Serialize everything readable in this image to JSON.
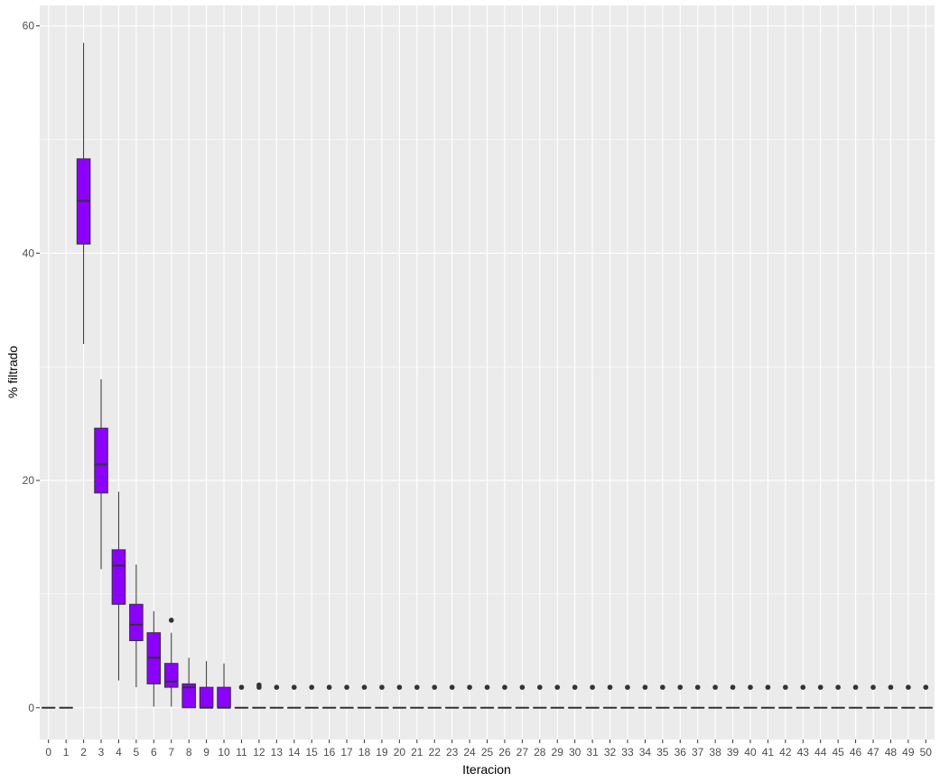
{
  "chart_data": {
    "type": "boxplot",
    "xlabel": "Iteracion",
    "ylabel": "% filtrado",
    "ylim": [
      -2.8,
      61.8
    ],
    "yticks": [
      0,
      20,
      40,
      60
    ],
    "grid": true,
    "fill_color": "#8B00FF",
    "panel_color": "#EBEBEB",
    "categories": [
      "0",
      "1",
      "2",
      "3",
      "4",
      "5",
      "6",
      "7",
      "8",
      "9",
      "10",
      "11",
      "12",
      "13",
      "14",
      "15",
      "16",
      "17",
      "18",
      "19",
      "20",
      "21",
      "22",
      "23",
      "24",
      "25",
      "26",
      "27",
      "28",
      "29",
      "30",
      "31",
      "32",
      "33",
      "34",
      "35",
      "36",
      "37",
      "38",
      "39",
      "40",
      "41",
      "42",
      "43",
      "44",
      "45",
      "46",
      "47",
      "48",
      "49",
      "50"
    ],
    "boxes": [
      {
        "x": "0",
        "min": 0,
        "q1": 0,
        "median": 0,
        "q3": 0,
        "max": 0,
        "outliers": []
      },
      {
        "x": "1",
        "min": 0,
        "q1": 0,
        "median": 0,
        "q3": 0,
        "max": 0,
        "outliers": []
      },
      {
        "x": "2",
        "min": 32.0,
        "q1": 40.8,
        "median": 44.6,
        "q3": 48.3,
        "max": 58.5,
        "outliers": []
      },
      {
        "x": "3",
        "min": 12.2,
        "q1": 18.9,
        "median": 21.4,
        "q3": 24.6,
        "max": 28.9,
        "outliers": []
      },
      {
        "x": "4",
        "min": 2.4,
        "q1": 9.1,
        "median": 12.5,
        "q3": 13.9,
        "max": 19.0,
        "outliers": []
      },
      {
        "x": "5",
        "min": 1.8,
        "q1": 5.9,
        "median": 7.3,
        "q3": 9.1,
        "max": 12.6,
        "outliers": []
      },
      {
        "x": "6",
        "min": 0.1,
        "q1": 2.1,
        "median": 4.4,
        "q3": 6.6,
        "max": 8.5,
        "outliers": []
      },
      {
        "x": "7",
        "min": 0.1,
        "q1": 1.8,
        "median": 2.3,
        "q3": 3.9,
        "max": 6.6,
        "outliers": [
          7.7
        ]
      },
      {
        "x": "8",
        "min": 0,
        "q1": 0,
        "median": 1.8,
        "q3": 2.1,
        "max": 4.4,
        "outliers": []
      },
      {
        "x": "9",
        "min": 0,
        "q1": 0,
        "median": 0,
        "q3": 1.8,
        "max": 4.1,
        "outliers": []
      },
      {
        "x": "10",
        "min": 0,
        "q1": 0,
        "median": 0,
        "q3": 1.8,
        "max": 3.9,
        "outliers": []
      },
      {
        "x": "11",
        "min": 0,
        "q1": 0,
        "median": 0,
        "q3": 0,
        "max": 0,
        "outliers": [
          1.8
        ]
      },
      {
        "x": "12",
        "min": 0,
        "q1": 0,
        "median": 0,
        "q3": 0,
        "max": 0,
        "outliers": [
          1.8,
          2.0
        ]
      },
      {
        "x": "13",
        "min": 0,
        "q1": 0,
        "median": 0,
        "q3": 0,
        "max": 0,
        "outliers": [
          1.8
        ]
      },
      {
        "x": "14",
        "min": 0,
        "q1": 0,
        "median": 0,
        "q3": 0,
        "max": 0,
        "outliers": [
          1.8
        ]
      },
      {
        "x": "15",
        "min": 0,
        "q1": 0,
        "median": 0,
        "q3": 0,
        "max": 0,
        "outliers": [
          1.8
        ]
      },
      {
        "x": "16",
        "min": 0,
        "q1": 0,
        "median": 0,
        "q3": 0,
        "max": 0,
        "outliers": [
          1.8
        ]
      },
      {
        "x": "17",
        "min": 0,
        "q1": 0,
        "median": 0,
        "q3": 0,
        "max": 0,
        "outliers": [
          1.8
        ]
      },
      {
        "x": "18",
        "min": 0,
        "q1": 0,
        "median": 0,
        "q3": 0,
        "max": 0,
        "outliers": [
          1.8
        ]
      },
      {
        "x": "19",
        "min": 0,
        "q1": 0,
        "median": 0,
        "q3": 0,
        "max": 0,
        "outliers": [
          1.8
        ]
      },
      {
        "x": "20",
        "min": 0,
        "q1": 0,
        "median": 0,
        "q3": 0,
        "max": 0,
        "outliers": [
          1.8
        ]
      },
      {
        "x": "21",
        "min": 0,
        "q1": 0,
        "median": 0,
        "q3": 0,
        "max": 0,
        "outliers": [
          1.8
        ]
      },
      {
        "x": "22",
        "min": 0,
        "q1": 0,
        "median": 0,
        "q3": 0,
        "max": 0,
        "outliers": [
          1.8
        ]
      },
      {
        "x": "23",
        "min": 0,
        "q1": 0,
        "median": 0,
        "q3": 0,
        "max": 0,
        "outliers": [
          1.8
        ]
      },
      {
        "x": "24",
        "min": 0,
        "q1": 0,
        "median": 0,
        "q3": 0,
        "max": 0,
        "outliers": [
          1.8
        ]
      },
      {
        "x": "25",
        "min": 0,
        "q1": 0,
        "median": 0,
        "q3": 0,
        "max": 0,
        "outliers": [
          1.8
        ]
      },
      {
        "x": "26",
        "min": 0,
        "q1": 0,
        "median": 0,
        "q3": 0,
        "max": 0,
        "outliers": [
          1.8
        ]
      },
      {
        "x": "27",
        "min": 0,
        "q1": 0,
        "median": 0,
        "q3": 0,
        "max": 0,
        "outliers": [
          1.8
        ]
      },
      {
        "x": "28",
        "min": 0,
        "q1": 0,
        "median": 0,
        "q3": 0,
        "max": 0,
        "outliers": [
          1.8
        ]
      },
      {
        "x": "29",
        "min": 0,
        "q1": 0,
        "median": 0,
        "q3": 0,
        "max": 0,
        "outliers": [
          1.8
        ]
      },
      {
        "x": "30",
        "min": 0,
        "q1": 0,
        "median": 0,
        "q3": 0,
        "max": 0,
        "outliers": [
          1.8
        ]
      },
      {
        "x": "31",
        "min": 0,
        "q1": 0,
        "median": 0,
        "q3": 0,
        "max": 0,
        "outliers": [
          1.8
        ]
      },
      {
        "x": "32",
        "min": 0,
        "q1": 0,
        "median": 0,
        "q3": 0,
        "max": 0,
        "outliers": [
          1.8
        ]
      },
      {
        "x": "33",
        "min": 0,
        "q1": 0,
        "median": 0,
        "q3": 0,
        "max": 0,
        "outliers": [
          1.8
        ]
      },
      {
        "x": "34",
        "min": 0,
        "q1": 0,
        "median": 0,
        "q3": 0,
        "max": 0,
        "outliers": [
          1.8
        ]
      },
      {
        "x": "35",
        "min": 0,
        "q1": 0,
        "median": 0,
        "q3": 0,
        "max": 0,
        "outliers": [
          1.8
        ]
      },
      {
        "x": "36",
        "min": 0,
        "q1": 0,
        "median": 0,
        "q3": 0,
        "max": 0,
        "outliers": [
          1.8
        ]
      },
      {
        "x": "37",
        "min": 0,
        "q1": 0,
        "median": 0,
        "q3": 0,
        "max": 0,
        "outliers": [
          1.8
        ]
      },
      {
        "x": "38",
        "min": 0,
        "q1": 0,
        "median": 0,
        "q3": 0,
        "max": 0,
        "outliers": [
          1.8
        ]
      },
      {
        "x": "39",
        "min": 0,
        "q1": 0,
        "median": 0,
        "q3": 0,
        "max": 0,
        "outliers": [
          1.8
        ]
      },
      {
        "x": "40",
        "min": 0,
        "q1": 0,
        "median": 0,
        "q3": 0,
        "max": 0,
        "outliers": [
          1.8
        ]
      },
      {
        "x": "41",
        "min": 0,
        "q1": 0,
        "median": 0,
        "q3": 0,
        "max": 0,
        "outliers": [
          1.8
        ]
      },
      {
        "x": "42",
        "min": 0,
        "q1": 0,
        "median": 0,
        "q3": 0,
        "max": 0,
        "outliers": [
          1.8
        ]
      },
      {
        "x": "43",
        "min": 0,
        "q1": 0,
        "median": 0,
        "q3": 0,
        "max": 0,
        "outliers": [
          1.8
        ]
      },
      {
        "x": "44",
        "min": 0,
        "q1": 0,
        "median": 0,
        "q3": 0,
        "max": 0,
        "outliers": [
          1.8
        ]
      },
      {
        "x": "45",
        "min": 0,
        "q1": 0,
        "median": 0,
        "q3": 0,
        "max": 0,
        "outliers": [
          1.8
        ]
      },
      {
        "x": "46",
        "min": 0,
        "q1": 0,
        "median": 0,
        "q3": 0,
        "max": 0,
        "outliers": [
          1.8
        ]
      },
      {
        "x": "47",
        "min": 0,
        "q1": 0,
        "median": 0,
        "q3": 0,
        "max": 0,
        "outliers": [
          1.8
        ]
      },
      {
        "x": "48",
        "min": 0,
        "q1": 0,
        "median": 0,
        "q3": 0,
        "max": 0,
        "outliers": [
          1.8
        ]
      },
      {
        "x": "49",
        "min": 0,
        "q1": 0,
        "median": 0,
        "q3": 0,
        "max": 0,
        "outliers": [
          1.8
        ]
      },
      {
        "x": "50",
        "min": 0,
        "q1": 0,
        "median": 0,
        "q3": 0,
        "max": 0,
        "outliers": [
          1.8
        ]
      }
    ]
  }
}
